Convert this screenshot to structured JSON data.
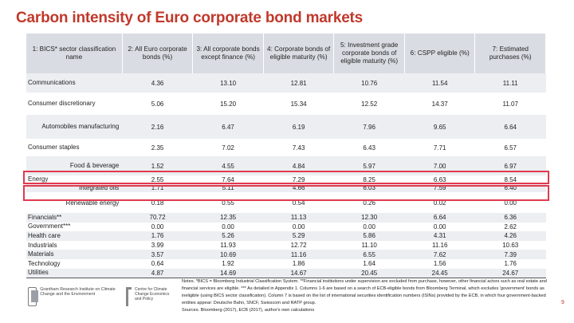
{
  "title": "Carbon intensity of Euro corporate bond markets",
  "table": {
    "headers": [
      "1: BICS* sector classification name",
      "2: All Euro corporate bonds (%)",
      "3: All corporate bonds except finance (%)",
      "4: Corporate bonds of eligible maturity (%)",
      "5: Investment grade corporate bonds of eligible maturity (%)",
      "6: CSPP eligible (%)",
      "7: Estimated purchases (%)"
    ],
    "rows": [
      {
        "label": "Communications",
        "values": [
          "4.36",
          "13.10",
          "12.81",
          "10.76",
          "11.54",
          "11.11"
        ]
      },
      {
        "label": "Consumer discretionary",
        "values": [
          "5.06",
          "15.20",
          "15.34",
          "12.52",
          "14.37",
          "11.07"
        ]
      },
      {
        "label": "Automobiles manufacturing",
        "values": [
          "2.16",
          "6.47",
          "6.19",
          "7.96",
          "9.65",
          "6.64"
        ]
      },
      {
        "label": "Consumer staples",
        "values": [
          "2.35",
          "7.02",
          "7.43",
          "6.43",
          "7.71",
          "6.57"
        ]
      },
      {
        "label": "Food & beverage",
        "values": [
          "1.52",
          "4.55",
          "4.84",
          "5.97",
          "7.00",
          "6.97"
        ]
      },
      {
        "label": "Energy",
        "values": [
          "2.55",
          "7.64",
          "7.29",
          "8.25",
          "6.63",
          "8.54"
        ]
      },
      {
        "label": "Integrated oils",
        "values": [
          "1.71",
          "5.11",
          "4.66",
          "6.03",
          "7.59",
          "6.40"
        ]
      },
      {
        "label": "Renewable energy",
        "values": [
          "0.18",
          "0.55",
          "0.54",
          "0.26",
          "0.02",
          "0.00"
        ]
      },
      {
        "label": "Financials**",
        "values": [
          "70.72",
          "12.35",
          "11.13",
          "12.30",
          "6.64",
          "6.36"
        ]
      },
      {
        "label": "Government***",
        "values": [
          "0.00",
          "0.00",
          "0.00",
          "0.00",
          "0.00",
          "2.62"
        ]
      },
      {
        "label": "Health care",
        "values": [
          "1.76",
          "5.26",
          "5.29",
          "5.86",
          "4.31",
          "4.26"
        ]
      },
      {
        "label": "Industrials",
        "values": [
          "3.99",
          "11.93",
          "12.72",
          "11.10",
          "11.16",
          "10.63"
        ]
      },
      {
        "label": "Materials",
        "values": [
          "3.57",
          "10.69",
          "11.16",
          "6.55",
          "7.62",
          "7.39"
        ]
      },
      {
        "label": "Technology",
        "values": [
          "0.64",
          "1.92",
          "1.86",
          "1.64",
          "1.56",
          "1.76"
        ]
      },
      {
        "label": "Utilities",
        "values": [
          "4.87",
          "14.69",
          "14.67",
          "20.45",
          "24.45",
          "24.67"
        ]
      }
    ]
  },
  "logos": {
    "left": "Grantham Research Institute on Climate Change and the Environment",
    "right": "Centre for Climate Change Economics and Policy"
  },
  "notes": "Notes. *BICS = Bloomberg Industrial Classification System. **Financial institutions under supervision are excluded from purchase, however, other financial actors such as real estate and financial services are eligible. *** As detailed in Appendix 1. Columns 1-6 are based on a search of ECB-eligible bonds from Bloomberg Terminal, which excludes 'government' bonds as ineligible (using BICS sector classification). Column 7 is based on the list of international securities identification numbers (ISINs) provided by the ECB, in which four government-backed entities appear: Deutsche Bahn, SNCF, Swisscom and RATP group.",
  "sources": "Sources. Bloomberg (2017), ECB (2017), author's own calculations",
  "page_number": "9",
  "colors": {
    "title": "#c0392b",
    "highlight": "#e0394d",
    "header_bg": "#d9dde3",
    "band_bg": "#eceef2"
  }
}
